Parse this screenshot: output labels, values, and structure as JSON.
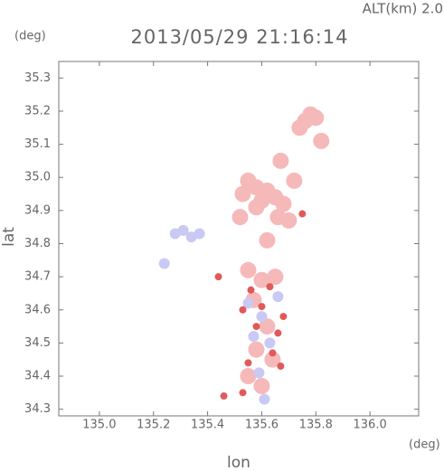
{
  "chart_data": {
    "type": "scatter",
    "title": "2013/05/29 21:16:14",
    "subtitle": "ALT(km) 2.0",
    "x_label": "lon",
    "y_label": "lat",
    "x_unit": "(deg)",
    "y_unit": "(deg)",
    "xlim": [
      134.85,
      136.18
    ],
    "ylim": [
      34.28,
      35.35
    ],
    "xticks": [
      {
        "value": 135,
        "label": "135.0"
      },
      135.2,
      135.4,
      135.6,
      135.8,
      {
        "value": 136,
        "label": "136.0"
      }
    ],
    "yticks": [
      34.3,
      34.4,
      34.5,
      34.6,
      34.7,
      34.8,
      34.9,
      {
        "value": 35,
        "label": "35.0"
      },
      35.1,
      35.2,
      35.3
    ],
    "series": [
      {
        "color": "#f6b9b9",
        "x": [
          135.78,
          135.76,
          135.8,
          135.74,
          135.82,
          135.67,
          135.72,
          135.55,
          135.58,
          135.62,
          135.65,
          135.6,
          135.53,
          135.68,
          135.66,
          135.7,
          135.58,
          135.52,
          135.62,
          135.55,
          135.6,
          135.65,
          135.57,
          135.62,
          135.58,
          135.64,
          135.55,
          135.6
        ],
        "y": [
          35.19,
          35.17,
          35.18,
          35.15,
          35.11,
          35.05,
          34.99,
          34.99,
          34.97,
          34.96,
          34.94,
          34.93,
          34.95,
          34.92,
          34.88,
          34.87,
          34.91,
          34.88,
          34.81,
          34.72,
          34.69,
          34.7,
          34.63,
          34.55,
          34.48,
          34.45,
          34.4,
          34.37
        ]
      },
      {
        "color": "#c9c9f4",
        "x": [
          135.28,
          135.31,
          135.34,
          135.37,
          135.24,
          135.55,
          135.6,
          135.66,
          135.57,
          135.63,
          135.59,
          135.61
        ],
        "y": [
          34.83,
          34.84,
          34.82,
          34.83,
          34.74,
          34.62,
          34.58,
          34.64,
          34.52,
          34.5,
          34.41,
          34.33
        ]
      },
      {
        "color": "#e05a5a",
        "x": [
          135.56,
          135.63,
          135.53,
          135.6,
          135.68,
          135.58,
          135.66,
          135.64,
          135.67,
          135.55,
          135.53,
          135.46,
          135.75,
          135.44
        ],
        "y": [
          34.66,
          34.67,
          34.6,
          34.61,
          34.58,
          34.55,
          34.53,
          34.47,
          34.43,
          34.44,
          34.35,
          34.34,
          34.89,
          34.7
        ]
      }
    ]
  }
}
